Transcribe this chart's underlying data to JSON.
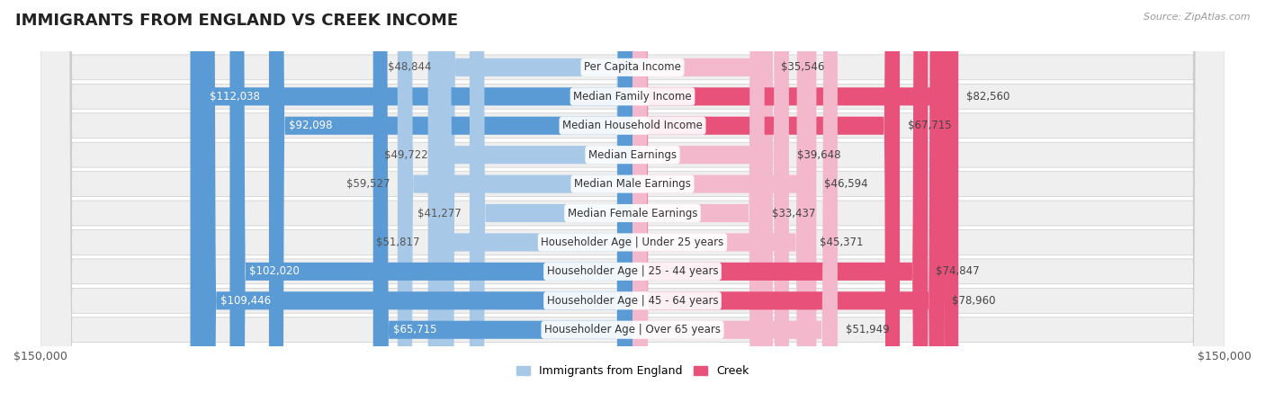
{
  "title": "IMMIGRANTS FROM ENGLAND VS CREEK INCOME",
  "source": "Source: ZipAtlas.com",
  "categories": [
    "Per Capita Income",
    "Median Family Income",
    "Median Household Income",
    "Median Earnings",
    "Median Male Earnings",
    "Median Female Earnings",
    "Householder Age | Under 25 years",
    "Householder Age | 25 - 44 years",
    "Householder Age | 45 - 64 years",
    "Householder Age | Over 65 years"
  ],
  "england_values": [
    48844,
    112038,
    92098,
    49722,
    59527,
    41277,
    51817,
    102020,
    109446,
    65715
  ],
  "creek_values": [
    35546,
    82560,
    67715,
    39648,
    46594,
    33437,
    45371,
    74847,
    78960,
    51949
  ],
  "england_color_light": "#a8c8e8",
  "england_color_dark": "#5b9bd5",
  "creek_color_light": "#f4b8cc",
  "creek_color_dark": "#e8527a",
  "inside_threshold": 60000,
  "bar_height": 0.62,
  "max_value": 150000,
  "background_color": "#ffffff",
  "row_bg_color": "#efefef",
  "title_fontsize": 13,
  "label_fontsize": 8.5,
  "category_fontsize": 8.5,
  "axis_label_fontsize": 9,
  "legend_fontsize": 9,
  "source_fontsize": 8
}
